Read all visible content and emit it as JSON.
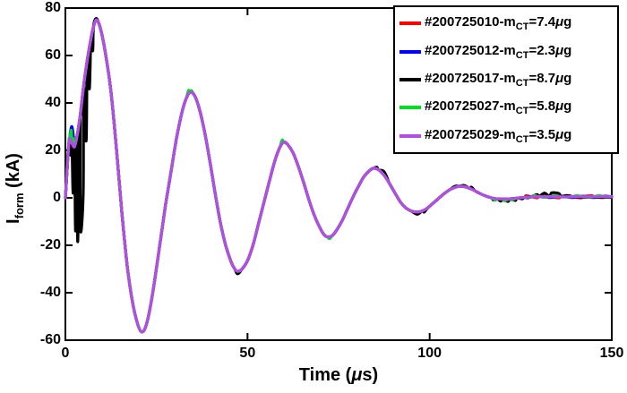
{
  "chart_data": {
    "type": "line",
    "title": "",
    "xlabel_parts": {
      "pre": "Time (",
      "mu": "μ",
      "post": "s)"
    },
    "ylabel_parts": {
      "pre": "I",
      "sub": "form",
      "post": " (kA)"
    },
    "x_range": [
      0,
      150
    ],
    "y_range": [
      -60,
      80
    ],
    "xticks": [
      0,
      50,
      100,
      150
    ],
    "yticks": [
      -60,
      -40,
      -20,
      0,
      20,
      40,
      60,
      80
    ],
    "xtick_labels": [
      "0",
      "50",
      "100",
      "150"
    ],
    "ytick_labels": [
      "-60",
      "-40",
      "-20",
      "0",
      "20",
      "40",
      "60",
      "80"
    ],
    "axis_color": "#000000",
    "grid": false,
    "legend_position": "top-right",
    "legend_format": {
      "m_prefix": "-m",
      "sub": "CT",
      "eq": "=",
      "mu": "μ",
      "unit": "g"
    },
    "base_points": [
      [
        0,
        0
      ],
      [
        0.4,
        10
      ],
      [
        0.8,
        20
      ],
      [
        1.2,
        25
      ],
      [
        1.8,
        23
      ],
      [
        2.5,
        21.5
      ],
      [
        3.2,
        26
      ],
      [
        4,
        34
      ],
      [
        5,
        47
      ],
      [
        6,
        58
      ],
      [
        7,
        67
      ],
      [
        7.7,
        72
      ],
      [
        8.4,
        75
      ],
      [
        9.2,
        73.5
      ],
      [
        10,
        69
      ],
      [
        11,
        61
      ],
      [
        12.5,
        45
      ],
      [
        14,
        21
      ],
      [
        15.5,
        -6
      ],
      [
        17,
        -29
      ],
      [
        18.5,
        -44.5
      ],
      [
        19.8,
        -53
      ],
      [
        20.9,
        -56.5
      ],
      [
        22,
        -54.5
      ],
      [
        23.2,
        -47
      ],
      [
        24.5,
        -35
      ],
      [
        26,
        -19
      ],
      [
        27.5,
        -3
      ],
      [
        29,
        11
      ],
      [
        30.5,
        25
      ],
      [
        32,
        36
      ],
      [
        33.2,
        42
      ],
      [
        34.2,
        44.5
      ],
      [
        35.3,
        43.5
      ],
      [
        36.5,
        39
      ],
      [
        38,
        29.5
      ],
      [
        39.5,
        17
      ],
      [
        41,
        3
      ],
      [
        42.5,
        -10
      ],
      [
        44,
        -20
      ],
      [
        45.5,
        -27
      ],
      [
        46.5,
        -30
      ],
      [
        47.3,
        -31
      ],
      [
        48.5,
        -30
      ],
      [
        50,
        -26.5
      ],
      [
        51.5,
        -20
      ],
      [
        53,
        -11
      ],
      [
        54.5,
        -2
      ],
      [
        56,
        7
      ],
      [
        57.5,
        15.5
      ],
      [
        58.8,
        21
      ],
      [
        59.9,
        23.5
      ],
      [
        61,
        22.5
      ],
      [
        62.5,
        19
      ],
      [
        64,
        13
      ],
      [
        65.5,
        6
      ],
      [
        67,
        -1.5
      ],
      [
        68.5,
        -8
      ],
      [
        70,
        -13
      ],
      [
        71,
        -15.5
      ],
      [
        72,
        -16.5
      ],
      [
        73.2,
        -16
      ],
      [
        74.5,
        -13.5
      ],
      [
        76,
        -9.5
      ],
      [
        77.5,
        -4.5
      ],
      [
        79,
        0.5
      ],
      [
        80.5,
        5
      ],
      [
        82,
        9
      ],
      [
        83.5,
        11.5
      ],
      [
        84.6,
        12.5
      ],
      [
        86,
        11.8
      ],
      [
        87.5,
        9.5
      ],
      [
        89,
        6
      ],
      [
        90.5,
        2
      ],
      [
        92,
        -1.8
      ],
      [
        93.5,
        -4.3
      ],
      [
        95,
        -5.6
      ],
      [
        96.6,
        -6
      ],
      [
        98,
        -5.5
      ],
      [
        99.5,
        -4.2
      ],
      [
        101,
        -2.2
      ],
      [
        102.5,
        -0.2
      ],
      [
        104,
        1.8
      ],
      [
        105.5,
        3.4
      ],
      [
        107,
        4.4
      ],
      [
        108.2,
        4.9
      ],
      [
        109.5,
        4.7
      ],
      [
        111,
        4
      ],
      [
        112.5,
        2.9
      ],
      [
        114,
        1.7
      ],
      [
        115.5,
        0.7
      ],
      [
        117,
        0
      ],
      [
        118.5,
        -0.4
      ],
      [
        120,
        -0.5
      ],
      [
        122,
        -0.4
      ],
      [
        124,
        -0.1
      ],
      [
        126,
        0.2
      ],
      [
        128,
        0.4
      ],
      [
        130,
        0.5
      ],
      [
        133,
        0.5
      ],
      [
        136,
        0.4
      ],
      [
        139,
        0.5
      ],
      [
        142,
        0.5
      ],
      [
        145,
        0.5
      ],
      [
        148,
        0.5
      ],
      [
        150,
        0.5
      ]
    ],
    "series": [
      {
        "name": "#200725010",
        "mass": "7.4",
        "color": "#ff0000",
        "overrides": [
          [
            126.5,
            0.9
          ],
          [
            129.5,
            0.0
          ],
          [
            132.5,
            0.9
          ],
          [
            135.5,
            0.0
          ],
          [
            138.5,
            0.9
          ],
          [
            141.5,
            0.0
          ],
          [
            144.5,
            0.9
          ],
          [
            147.5,
            0.1
          ]
        ]
      },
      {
        "name": "#200725012",
        "mass": "2.3",
        "color": "#0000ff",
        "overrides": [
          [
            0.9,
            21
          ],
          [
            1.4,
            28
          ],
          [
            1.8,
            30
          ],
          [
            2.2,
            26
          ],
          [
            2.6,
            22
          ],
          [
            127,
            0.0
          ],
          [
            130,
            0.8
          ],
          [
            133,
            0.1
          ],
          [
            136,
            0.8
          ],
          [
            139,
            0.1
          ],
          [
            142,
            0.7
          ],
          [
            145,
            0.1
          ],
          [
            148,
            0.7
          ]
        ]
      },
      {
        "name": "#200725017",
        "mass": "8.7",
        "color": "#000000",
        "overrides": [
          [
            1.4,
            18
          ],
          [
            2.1,
            2
          ],
          [
            2.8,
            -14
          ],
          [
            3.4,
            -18.5
          ],
          [
            4.1,
            -13
          ],
          [
            4.9,
            2
          ],
          [
            5.7,
            24
          ],
          [
            6.6,
            46
          ],
          [
            7.5,
            62
          ],
          [
            8.4,
            75.6
          ],
          [
            47.3,
            -32
          ],
          [
            85.5,
            12.9
          ],
          [
            87.5,
            11
          ],
          [
            96.6,
            -6.9
          ],
          [
            98.5,
            -6
          ],
          [
            107,
            4.9
          ],
          [
            109.5,
            5.2
          ],
          [
            111.5,
            4.5
          ],
          [
            117.5,
            -0.9
          ],
          [
            119.5,
            -1.4
          ],
          [
            121.5,
            -1.5
          ],
          [
            123.5,
            -1.1
          ],
          [
            125.5,
            -0.4
          ],
          [
            127.5,
            0.5
          ],
          [
            129.5,
            1.4
          ],
          [
            131.5,
            2
          ],
          [
            133.5,
            2.1
          ],
          [
            135.5,
            1.8
          ],
          [
            137.5,
            1
          ],
          [
            139.5,
            0.4
          ],
          [
            142,
            0.2
          ],
          [
            145,
            0.3
          ],
          [
            148,
            0.2
          ]
        ]
      },
      {
        "name": "#200725027",
        "mass": "5.8",
        "color": "#00dd22",
        "overrides": [
          [
            1,
            25
          ],
          [
            1.6,
            28.5
          ],
          [
            2.2,
            25
          ],
          [
            33.8,
            45.3
          ],
          [
            34.6,
            45.2
          ],
          [
            59.5,
            24.3
          ],
          [
            72.5,
            -17.2
          ],
          [
            118,
            -1
          ],
          [
            120.5,
            -1.2
          ],
          [
            122.5,
            -0.9
          ],
          [
            128.5,
            1
          ],
          [
            131.5,
            0.2
          ],
          [
            134.5,
            1
          ],
          [
            137.5,
            0.3
          ],
          [
            140.5,
            0.9
          ],
          [
            143.5,
            0.3
          ],
          [
            146.5,
            0.9
          ],
          [
            149,
            0.4
          ]
        ]
      },
      {
        "name": "#200725029",
        "mass": "3.5",
        "color": "#b44ce6",
        "overrides": []
      }
    ]
  }
}
